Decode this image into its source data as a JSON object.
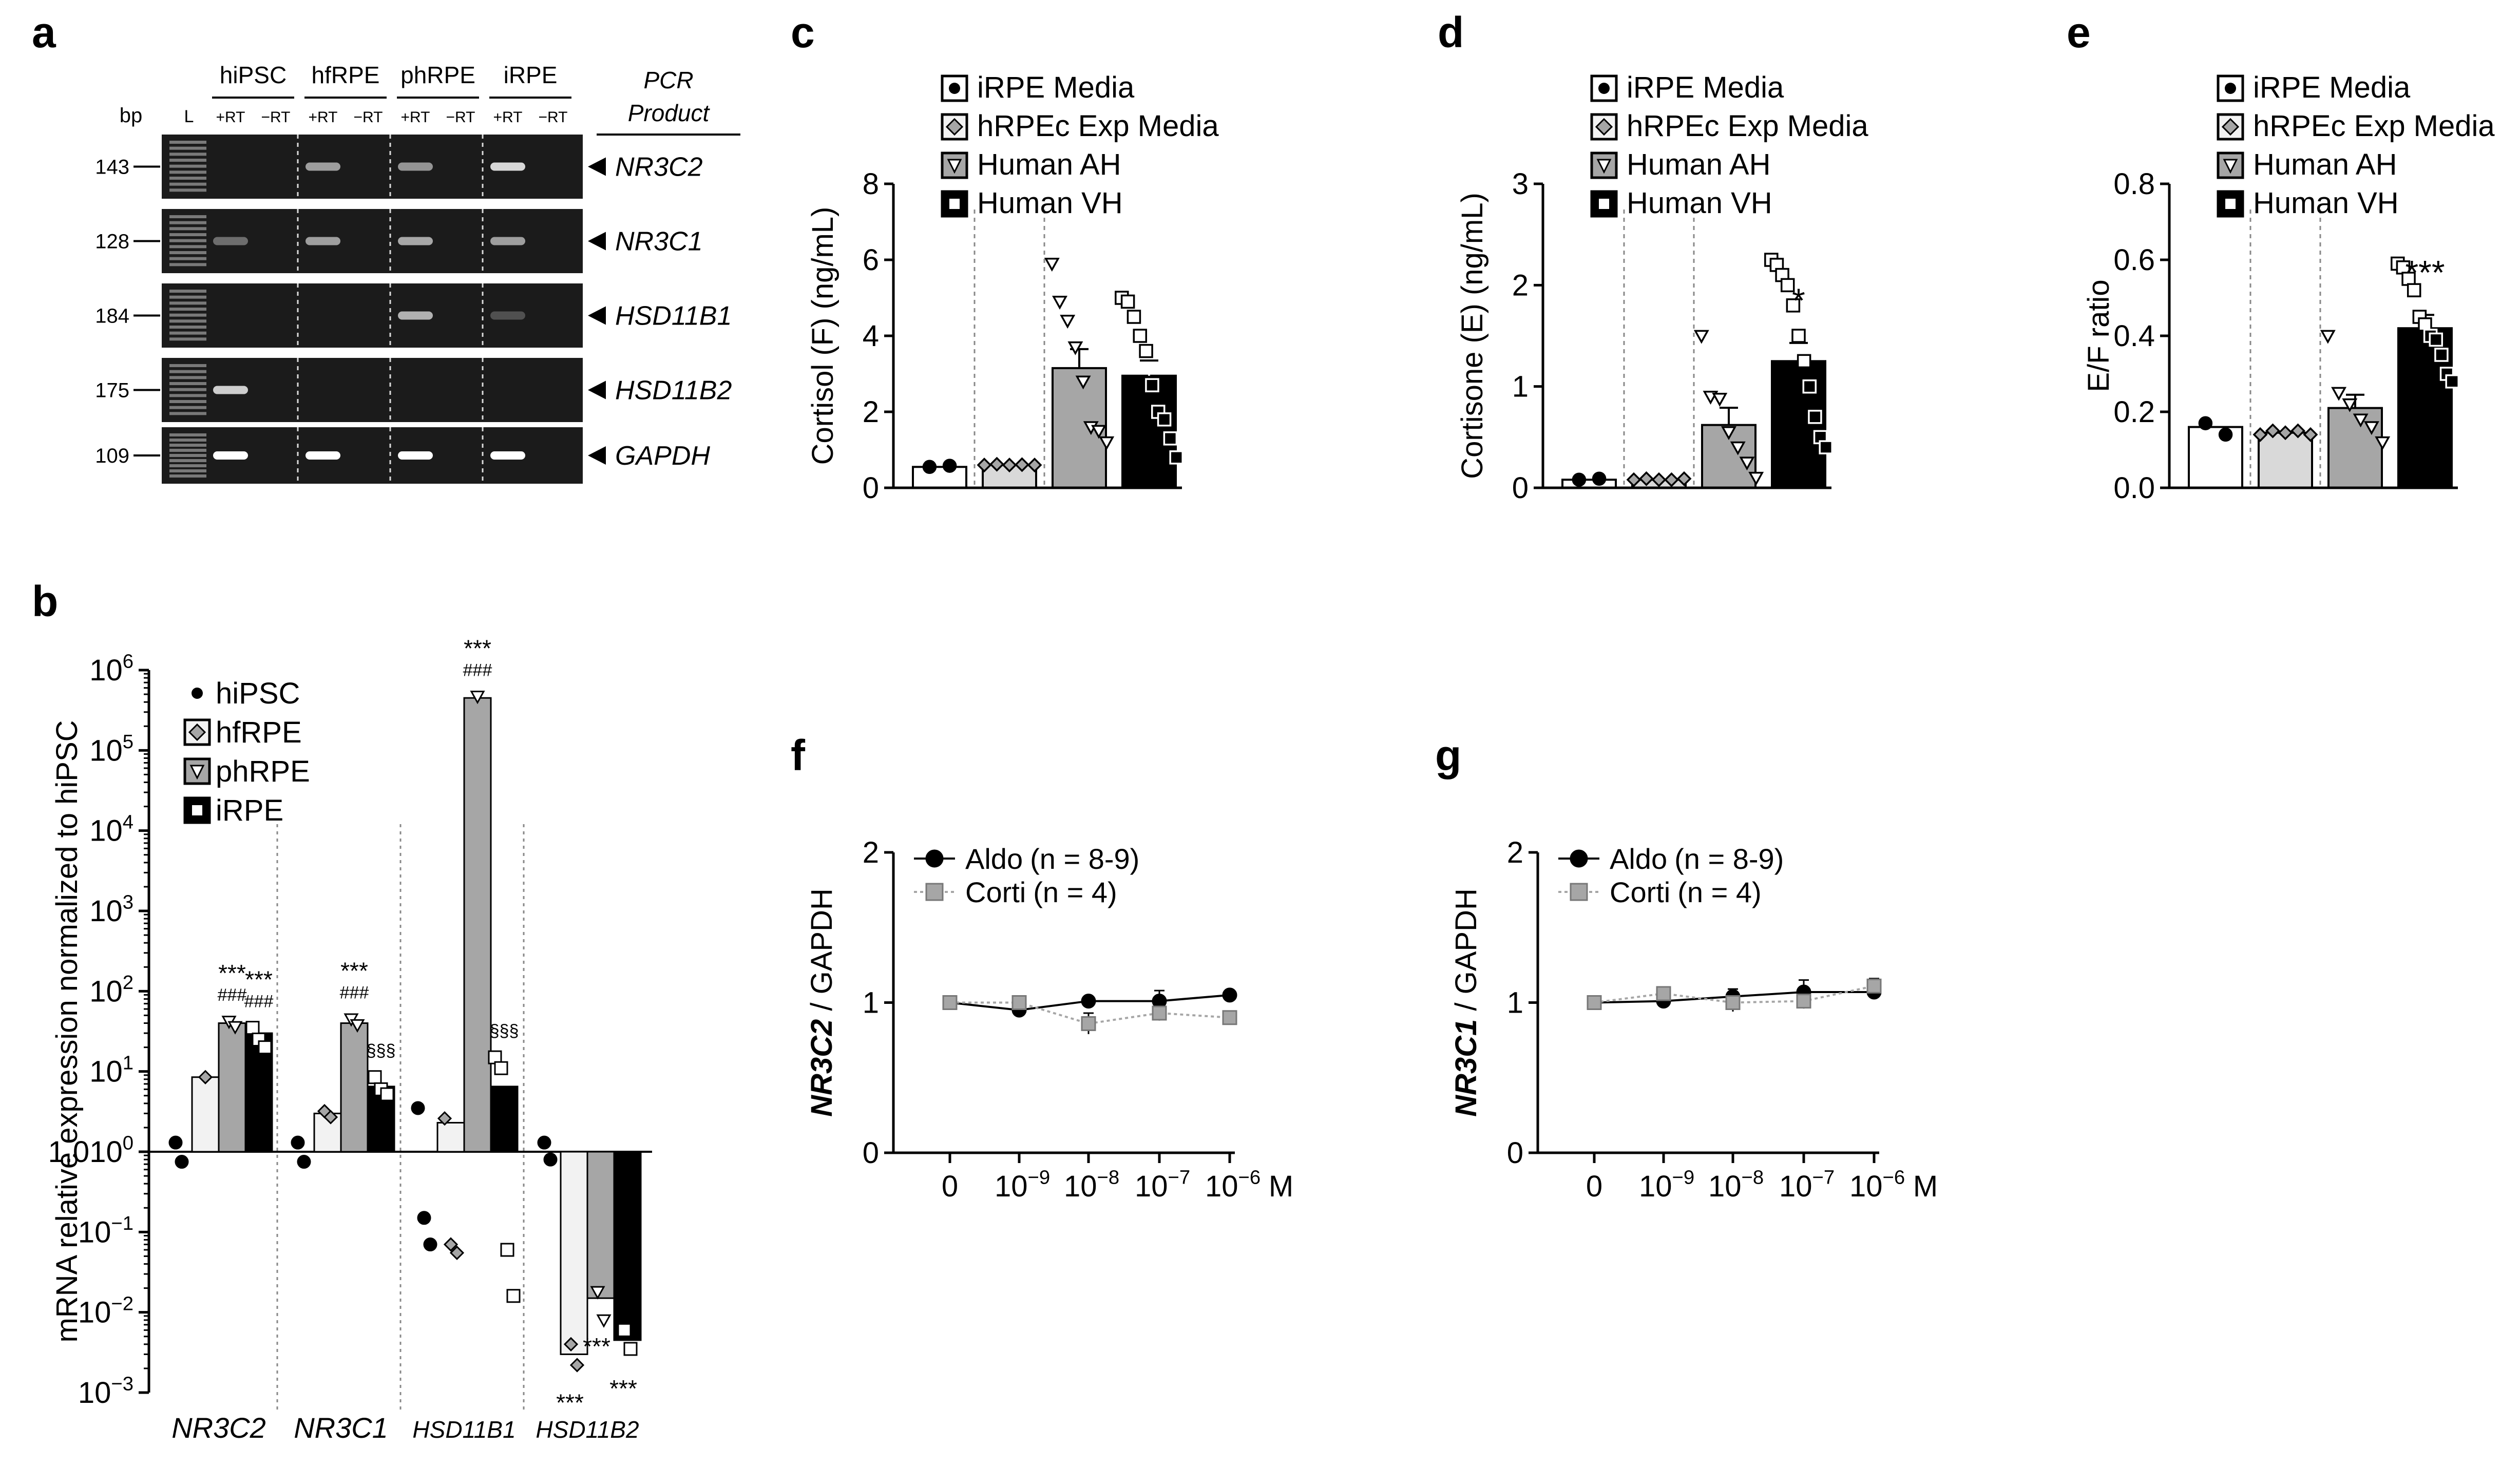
{
  "panels": {
    "a": {
      "label": "a",
      "bp_label": "bp",
      "ladder_label": "L",
      "pcr_product_label": [
        "PCR",
        "Product"
      ],
      "groups": [
        "hiPSC",
        "hfRPE",
        "phRPE",
        "iRPE"
      ],
      "lane_labels": [
        "+RT",
        "−RT"
      ],
      "rows": [
        {
          "bp": "143",
          "gene": "NR3C2",
          "bands": [
            0,
            0,
            0.5,
            0,
            0.45,
            0,
            0.8,
            0
          ]
        },
        {
          "bp": "128",
          "gene": "NR3C1",
          "bands": [
            0.25,
            0,
            0.5,
            0,
            0.55,
            0,
            0.5,
            0
          ]
        },
        {
          "bp": "184",
          "gene": "HSD11B1",
          "bands": [
            0,
            0,
            0,
            0,
            0.6,
            0,
            0.1,
            0
          ]
        },
        {
          "bp": "175",
          "gene": "HSD11B2",
          "bands": [
            0.75,
            0,
            0,
            0,
            0,
            0,
            0,
            0
          ]
        },
        {
          "bp": "109",
          "gene": "GAPDH",
          "bands": [
            1,
            0,
            1,
            0,
            1,
            0,
            1,
            0
          ]
        }
      ]
    },
    "b": {
      "label": "b",
      "chart_data": {
        "type": "bar",
        "yscale": "log",
        "ylabel": "mRNA  relative expression normalized to hiPSC",
        "ylim": [
          0.001,
          1000000
        ],
        "yticks": [
          {
            "base": "10",
            "exp": "6"
          },
          {
            "base": "10",
            "exp": "5"
          },
          {
            "base": "10",
            "exp": "4"
          },
          {
            "base": "10",
            "exp": "3"
          },
          {
            "base": "10",
            "exp": "2"
          },
          {
            "base": "10",
            "exp": "1"
          },
          {
            "base": "10",
            "exp": "0",
            "pre": "1.0"
          },
          {
            "base": "10",
            "exp": "−1"
          },
          {
            "base": "10",
            "exp": "−2"
          },
          {
            "base": "10",
            "exp": "−3"
          }
        ],
        "categories": [
          "NR3C2",
          "NR3C1",
          "HSD11B1",
          "HSD11B2"
        ],
        "series": [
          {
            "name": "hiPSC",
            "values": [
              1,
              1,
              1,
              1
            ],
            "color": "#ffffff",
            "marker": "dot"
          },
          {
            "name": "hfRPE",
            "values": [
              8.5,
              3,
              2.3,
              0.003
            ],
            "color": "#f2f2f2",
            "marker": "diamond"
          },
          {
            "name": "phRPE",
            "values": [
              40,
              40,
              450000,
              0.015
            ],
            "color": "#a6a6a6",
            "marker": "triangle"
          },
          {
            "name": "iRPE",
            "values": [
              30,
              6.5,
              6.5,
              0.0045
            ],
            "color": "#000000",
            "marker": "square"
          }
        ],
        "points": [
          [
            [
              1.3,
              0.75
            ],
            [
              8.5
            ],
            [
              42,
              36
            ],
            [
              35,
              25,
              20
            ]
          ],
          [
            [
              1.3,
              0.75
            ],
            [
              3.2,
              2.7
            ],
            [
              45,
              38
            ],
            [
              8.5,
              6.0,
              5.2
            ]
          ],
          [
            [
              3.5,
              0.15,
              0.07
            ],
            [
              2.6,
              0.07,
              0.055
            ],
            [
              470000
            ],
            [
              15,
              11,
              0.06,
              0.016
            ]
          ],
          [
            [
              1.3,
              0.8
            ],
            [
              0.004,
              0.0022
            ],
            [
              0.018,
              0.008
            ],
            [
              0.006,
              0.0035
            ]
          ]
        ],
        "annotations": [
          {
            "cat": 0,
            "series": 2,
            "lines": [
              "***",
              "###"
            ]
          },
          {
            "cat": 0,
            "series": 3,
            "lines": [
              "***",
              "###"
            ]
          },
          {
            "cat": 1,
            "series": 2,
            "lines": [
              "***",
              "###"
            ]
          },
          {
            "cat": 1,
            "series": 3,
            "lines": [
              "§§§"
            ]
          },
          {
            "cat": 2,
            "series": 2,
            "lines": [
              "***",
              "###"
            ]
          },
          {
            "cat": 2,
            "series": 3,
            "lines": [
              "§§§"
            ]
          },
          {
            "cat": 3,
            "series": 1,
            "lines": [
              "***"
            ],
            "below": true
          },
          {
            "cat": 3,
            "series": 2,
            "lines": [
              "***"
            ],
            "below": true
          },
          {
            "cat": 3,
            "series": 3,
            "lines": [
              "***"
            ],
            "below": true
          }
        ]
      }
    },
    "c": {
      "label": "c",
      "chart_data": {
        "type": "bar",
        "ylabel": "Cortisol (F) (ng/mL)",
        "ylim": [
          0,
          8
        ],
        "yticks": [
          "0",
          "2",
          "4",
          "6",
          "8"
        ],
        "categories": [
          "iRPE Media",
          "hRPEc Exp Media",
          "Human AH",
          "Human VH"
        ],
        "values": [
          0.55,
          0.6,
          3.15,
          2.95
        ],
        "sem": [
          0,
          0,
          0.5,
          0.4
        ],
        "points": [
          [
            0.55,
            0.58
          ],
          [
            0.6,
            0.62,
            0.6,
            0.61,
            0.6
          ],
          [
            5.9,
            4.9,
            4.4,
            3.7,
            2.8,
            1.6,
            1.5,
            1.2
          ],
          [
            5.0,
            4.9,
            4.5,
            4.0,
            3.6,
            2.7,
            2.0,
            1.8,
            1.3,
            0.8
          ]
        ],
        "significance": [
          "",
          "",
          "",
          ""
        ]
      }
    },
    "d": {
      "label": "d",
      "chart_data": {
        "type": "bar",
        "ylabel": "Cortisone (E) (ng/mL)",
        "ylim": [
          0,
          3
        ],
        "yticks": [
          "0",
          "1",
          "2",
          "3"
        ],
        "categories": [
          "iRPE Media",
          "hRPEc Exp Media",
          "Human AH",
          "Human VH"
        ],
        "values": [
          0.08,
          0.08,
          0.62,
          1.25
        ],
        "sem": [
          0,
          0,
          0.17,
          0.18
        ],
        "points": [
          [
            0.08,
            0.09
          ],
          [
            0.08,
            0.09,
            0.08,
            0.08,
            0.09
          ],
          [
            1.5,
            0.9,
            0.88,
            0.55,
            0.4,
            0.25,
            0.1
          ],
          [
            2.25,
            2.2,
            2.1,
            2.0,
            1.8,
            1.5,
            1.25,
            1.0,
            0.7,
            0.5,
            0.4
          ]
        ],
        "significance": [
          "",
          "",
          "",
          "*"
        ]
      }
    },
    "e": {
      "label": "e",
      "chart_data": {
        "type": "bar",
        "ylabel": "E/F ratio",
        "ylim": [
          0,
          0.8
        ],
        "yticks": [
          "0.0",
          "0.2",
          "0.4",
          "0.6",
          "0.8"
        ],
        "categories": [
          "iRPE Media",
          "hRPEc Exp Media",
          "Human AH",
          "Human VH"
        ],
        "values": [
          0.16,
          0.145,
          0.21,
          0.42
        ],
        "sem": [
          0,
          0,
          0.035,
          0.035
        ],
        "points": [
          [
            0.17,
            0.14
          ],
          [
            0.14,
            0.15,
            0.145,
            0.15,
            0.14
          ],
          [
            0.4,
            0.25,
            0.22,
            0.18,
            0.16,
            0.12
          ],
          [
            0.59,
            0.58,
            0.55,
            0.52,
            0.45,
            0.43,
            0.4,
            0.39,
            0.35,
            0.3,
            0.28
          ]
        ],
        "significance": [
          "",
          "",
          "",
          "***"
        ]
      }
    },
    "f": {
      "label": "f",
      "chart_data": {
        "type": "line",
        "ylabel_gene": "NR3C2",
        "ylabel_rest": " / GAPDH",
        "ylim": [
          0,
          2
        ],
        "yticks": [
          "0",
          "1",
          "2"
        ],
        "x_ticks": [
          {
            "text": "0"
          },
          {
            "base": "10",
            "exp": "−9"
          },
          {
            "base": "10",
            "exp": "−8"
          },
          {
            "base": "10",
            "exp": "−7"
          },
          {
            "base": "10",
            "exp": "−6"
          }
        ],
        "x_unit": "M",
        "series": [
          {
            "name": "Aldo",
            "n": "(n = 8-9)",
            "values": [
              1.0,
              0.95,
              1.01,
              1.01,
              1.05
            ],
            "err": [
              0.03,
              0.04,
              0.03,
              0.07,
              0.03
            ],
            "color": "#000000",
            "marker": "circle"
          },
          {
            "name": "Corti",
            "n": "(n = 4)",
            "values": [
              1.0,
              1.0,
              0.86,
              0.93,
              0.9
            ],
            "err": [
              0.03,
              0.04,
              0.07,
              0.05,
              0.03
            ],
            "color": "#a6a6a6",
            "marker": "square"
          }
        ]
      }
    },
    "g": {
      "label": "g",
      "chart_data": {
        "type": "line",
        "ylabel_gene": "NR3C1",
        "ylabel_rest": " / GAPDH",
        "ylim": [
          0,
          2
        ],
        "yticks": [
          "0",
          "1",
          "2"
        ],
        "x_ticks": [
          {
            "text": "0"
          },
          {
            "base": "10",
            "exp": "−9"
          },
          {
            "base": "10",
            "exp": "−8"
          },
          {
            "base": "10",
            "exp": "−7"
          },
          {
            "base": "10",
            "exp": "−6"
          }
        ],
        "x_unit": "M",
        "series": [
          {
            "name": "Aldo",
            "n": "(n = 8-9)",
            "values": [
              1.0,
              1.01,
              1.04,
              1.07,
              1.07
            ],
            "err": [
              0.03,
              0.03,
              0.05,
              0.08,
              0.04
            ],
            "color": "#000000",
            "marker": "circle"
          },
          {
            "name": "Corti",
            "n": "(n = 4)",
            "values": [
              1.0,
              1.06,
              1.0,
              1.01,
              1.11
            ],
            "err": [
              0.03,
              0.04,
              0.06,
              0.05,
              0.05
            ],
            "color": "#a6a6a6",
            "marker": "square"
          }
        ]
      }
    }
  }
}
